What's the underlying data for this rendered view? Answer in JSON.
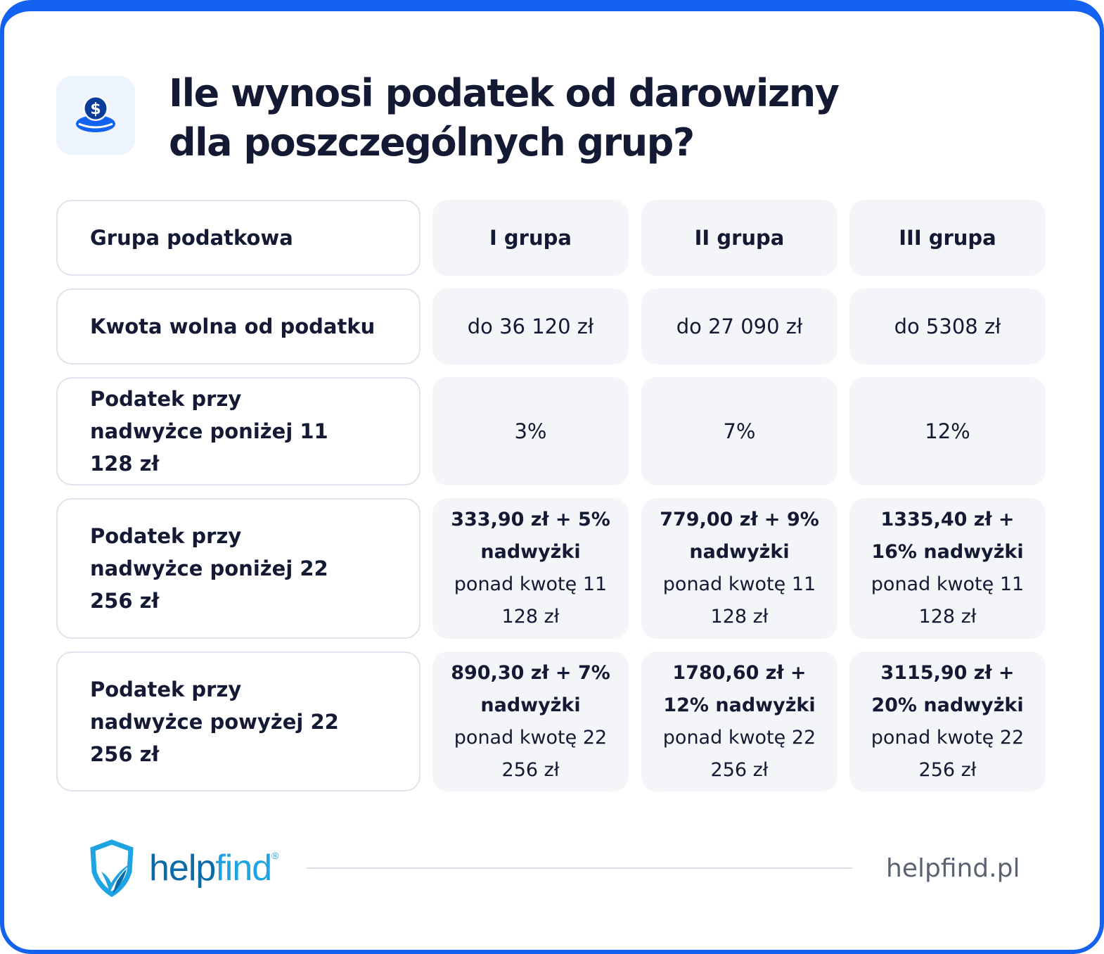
{
  "title_line1": "Ile wynosi podatek od darowizny",
  "title_line2": "dla poszczególnych grup?",
  "icon": "coin-dollar-icon",
  "colors": {
    "accent": "#1463f0",
    "dark": "#141a33",
    "cell": "#f3f5f9",
    "logo_dark": "#0b6aa8",
    "logo_light": "#1ea3e3"
  },
  "table": {
    "header": {
      "label": "Grupa podatkowa",
      "cols": [
        "I grupa",
        "II grupa",
        "III grupa"
      ]
    },
    "rows": [
      {
        "label": "Kwota wolna od podatku",
        "cells": [
          {
            "bold": "",
            "rest": "do 36 120 zł"
          },
          {
            "bold": "",
            "rest": "do 27 090 zł"
          },
          {
            "bold": "",
            "rest": "do 5308 zł"
          }
        ]
      },
      {
        "label": "Podatek przy nadwyżce poniżej 11 128 zł",
        "cells": [
          {
            "bold": "",
            "rest": "3%"
          },
          {
            "bold": "",
            "rest": "7%"
          },
          {
            "bold": "",
            "rest": "12%"
          }
        ]
      },
      {
        "label": "Podatek przy nadwyżce poniżej 22 256 zł",
        "cells": [
          {
            "bold": "333,90 zł + 5% nadwyżki",
            "rest": " ponad kwotę 11 128 zł"
          },
          {
            "bold": "779,00 zł + 9% nadwyżki",
            "rest": " ponad kwotę 11 128 zł"
          },
          {
            "bold": "1335,40 zł + 16% nadwyżki",
            "rest": " ponad kwotę 11 128 zł"
          }
        ]
      },
      {
        "label": "Podatek przy nadwyżce powyżej 22 256 zł",
        "cells": [
          {
            "bold": "890,30 zł + 7% nadwyżki",
            "rest": " ponad kwotę 22 256 zł"
          },
          {
            "bold": "1780,60 zł + 12% nadwyżki",
            "rest": " ponad kwotę 22 256 zł"
          },
          {
            "bold": "3115,90 zł + 20% nadwyżki",
            "rest": " ponad kwotę 22 256 zł"
          }
        ]
      }
    ]
  },
  "footer": {
    "logo_part1": "help",
    "logo_part2": "find",
    "logo_mark": "®",
    "site": "helpfind.pl"
  }
}
